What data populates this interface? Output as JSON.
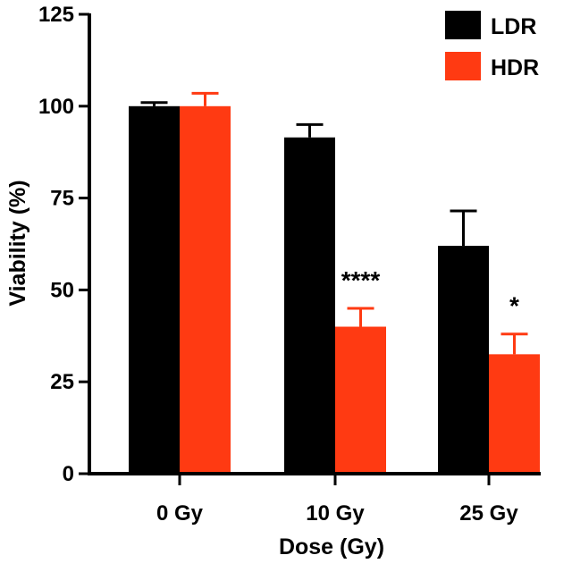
{
  "chart_data": {
    "type": "bar",
    "xlabel": "Dose (Gy)",
    "ylabel": "Viability (%)",
    "ylim": [
      0,
      125
    ],
    "yticks": [
      0,
      25,
      50,
      75,
      100,
      125
    ],
    "ytick_labels": [
      "0",
      "25",
      "50",
      "75",
      "100",
      "125"
    ],
    "categories": [
      "0 Gy",
      "10 Gy",
      "25 Gy"
    ],
    "series": [
      {
        "name": "LDR",
        "color": "#000000",
        "values": [
          100,
          91.5,
          62
        ],
        "errors": [
          1,
          3.5,
          9.5
        ]
      },
      {
        "name": "HDR",
        "color": "#ff3a12",
        "values": [
          100,
          40,
          32.5
        ],
        "errors": [
          3.5,
          5,
          5.5
        ]
      }
    ],
    "annotations": [
      {
        "category": "10 Gy",
        "series": "HDR",
        "label": "****"
      },
      {
        "category": "25 Gy",
        "series": "HDR",
        "label": "*"
      }
    ],
    "legend_position": "top-right",
    "grid": false
  }
}
